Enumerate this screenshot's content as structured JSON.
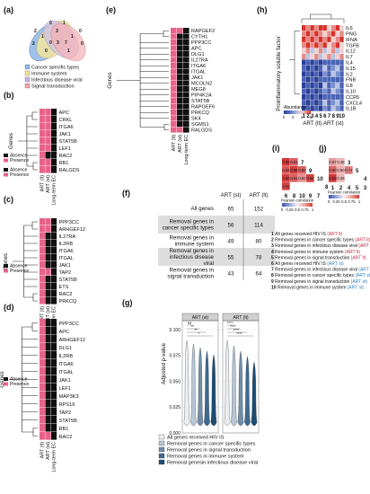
{
  "panel_labels": {
    "a": "(a)",
    "b": "(b)",
    "c": "(c)",
    "d": "(d)",
    "e": "(e)",
    "f": "(f)",
    "g": "(g)",
    "h": "(h)",
    "i": "(i)",
    "j": "(j)"
  },
  "colors": {
    "absence": "#111111",
    "presence": "#e8638a",
    "ven_cancer": "#8fb7e8",
    "ven_immune": "#f6e38a",
    "ven_viral": "#c8b6e2",
    "ven_signal": "#f2a3a8"
  },
  "venn": {
    "numbers": [
      "2",
      "0",
      "1",
      "0",
      "1",
      "3",
      "1",
      "2",
      "0",
      "3",
      "7",
      "0",
      "0",
      "1"
    ],
    "legend": [
      "Cancer specific types",
      "Immune system",
      "Infectious disease viral",
      "Signal transduction"
    ]
  },
  "common": {
    "genes_axis": "Genes",
    "absence": "Absence",
    "presence": "Presence",
    "col_lt": "ART (lt)",
    "col_st": "ART (st)",
    "col_ec": "Long-term EC"
  },
  "panel_b": {
    "genes": [
      "APC",
      "CRKL",
      "ITGA6",
      "JAK1",
      "STAT5B",
      "LEF1",
      "RAC2",
      "RB1",
      "RALGDS"
    ]
  },
  "panel_c": {
    "genes": [
      "PPP3CC",
      "ARHGEF12",
      "IL27RA",
      "IL2RB",
      "ITGA6",
      "ITGAL",
      "JAK1",
      "TAP2",
      "STAT5B",
      "ETS",
      "RAC2",
      "PRKCQ"
    ]
  },
  "panel_d": {
    "genes": [
      "PPP3CC",
      "APC",
      "ARHGEF12",
      "DLG1",
      "IL2RB",
      "ITGA6",
      "ITGAL",
      "JAK1",
      "LEF1",
      "MAP3K3",
      "RPS19",
      "TAP2",
      "STAT5B",
      "RB1",
      "RAC2"
    ]
  },
  "panel_e": {
    "genes": [
      "RAPGEF2",
      "CYTH1",
      "PPP3CC",
      "APC",
      "DLG1",
      "IL27RA",
      "ITGA6",
      "ITGAL",
      "JAK1",
      "MCOLN2",
      "MEG8",
      "PIP4K2A",
      "STAT5B",
      "RAPGEF6",
      "PRKCQ",
      "SK4",
      "SGMS1",
      "RALGDS"
    ]
  },
  "table_f": {
    "headers": [
      "ART (st)",
      "ART (lt)"
    ],
    "rows": [
      {
        "label": "All genes",
        "st": "65",
        "lt": "152"
      },
      {
        "label": "Removal genes in cancer specific types",
        "st": "56",
        "lt": "114"
      },
      {
        "label": "Removal genes in immune system",
        "st": "49",
        "lt": "80"
      },
      {
        "label": "Removal genes in infectious disease viral",
        "st": "55",
        "lt": "78"
      },
      {
        "label": "Removal genes in signal transduction",
        "st": "43",
        "lt": "64"
      }
    ]
  },
  "panel_g": {
    "ylabel": "Adjusted p-value",
    "ticks": [
      "0.000",
      "0.025",
      "0.050",
      "0.075",
      "0.100"
    ],
    "facets": [
      "ART (st)",
      "ART (lt)"
    ],
    "sig_st": [
      "ns",
      "**",
      "**",
      "*"
    ],
    "sig_lt": [
      "****",
      "****",
      "****",
      "****"
    ],
    "legend": [
      "All genes received HIV IS",
      "Removal genes in cancer specific types",
      "Removal genes in signal transduction",
      "Removal genes in immune system",
      "Removal genesin infectious disease viral"
    ]
  },
  "panel_h": {
    "ylabel": "Proinflammatory soluble factor",
    "factors": [
      "IL6",
      "PNG",
      "IFNA",
      "TGFB",
      "IL12",
      "IL7",
      "IL4",
      "IL15",
      "IL2",
      "FNB",
      "IL8",
      "IL10",
      "CCR5",
      "CXCL4",
      "IL1B"
    ],
    "legend_title": "Abundance",
    "legend_ticks": [
      "0",
      "2",
      "4",
      "6"
    ],
    "col_numbers": [
      "1",
      "2",
      "3",
      "4",
      "5",
      "6",
      "7",
      "8",
      "9",
      "10"
    ],
    "col_groups": [
      "ART (lt)",
      "ART (st)"
    ]
  },
  "panel_i": {
    "values": [
      "0.98",
      "0.81",
      "0.85",
      "0.96",
      "0.82",
      "0.96",
      "0.81",
      "0.62",
      "0.94",
      "0.92"
    ],
    "row_labels": [
      "7",
      "9",
      "10",
      "8"
    ],
    "col_labels": [
      "6",
      "8",
      "10",
      "9",
      "7"
    ],
    "legend": "Pearson correlation",
    "legend_ticks": [
      "0",
      "0.25",
      "0.5",
      "0.75",
      "1"
    ]
  },
  "panel_j": {
    "values": [
      "0.57",
      "0.48",
      "0.80",
      "0.50",
      "0.71",
      "0.98",
      "0.48"
    ],
    "row_labels": [
      "3",
      "5",
      "4"
    ],
    "col_labels": [
      "1",
      "2",
      "4",
      "5",
      "3"
    ],
    "legend": "Pearson correlation",
    "legend_ticks": [
      "0",
      "0.25",
      "0.5",
      "0.75",
      "1"
    ]
  },
  "footnotes": [
    {
      "num": "1",
      "text": "All genes received HIV IS",
      "tag": "(ART lt)"
    },
    {
      "num": "2",
      "text": "Removal genes in cancer specific types",
      "tag": "(ART lt)"
    },
    {
      "num": "3",
      "text": "Removal genes in infectious disease viral",
      "tag": "(ART lt)"
    },
    {
      "num": "4",
      "text": "Removal genes in immune system",
      "tag": "(ART lt)"
    },
    {
      "num": "5",
      "text": "Removal genes in signal transduction",
      "tag": "(ART lt)"
    },
    {
      "num": "6",
      "text": "All genes received HIV IS",
      "tag": "(ART st)"
    },
    {
      "num": "7",
      "text": "Removal genes in infectious disease viral",
      "tag": "(ART st)"
    },
    {
      "num": "8",
      "text": "Removal genes in cancer specific types",
      "tag": "(ART st)"
    },
    {
      "num": "9",
      "text": "Removal genes in signal transduction",
      "tag": "(ART st)"
    },
    {
      "num": "10",
      "text": "Removal genes in immune system",
      "tag": "(ART st)"
    }
  ]
}
